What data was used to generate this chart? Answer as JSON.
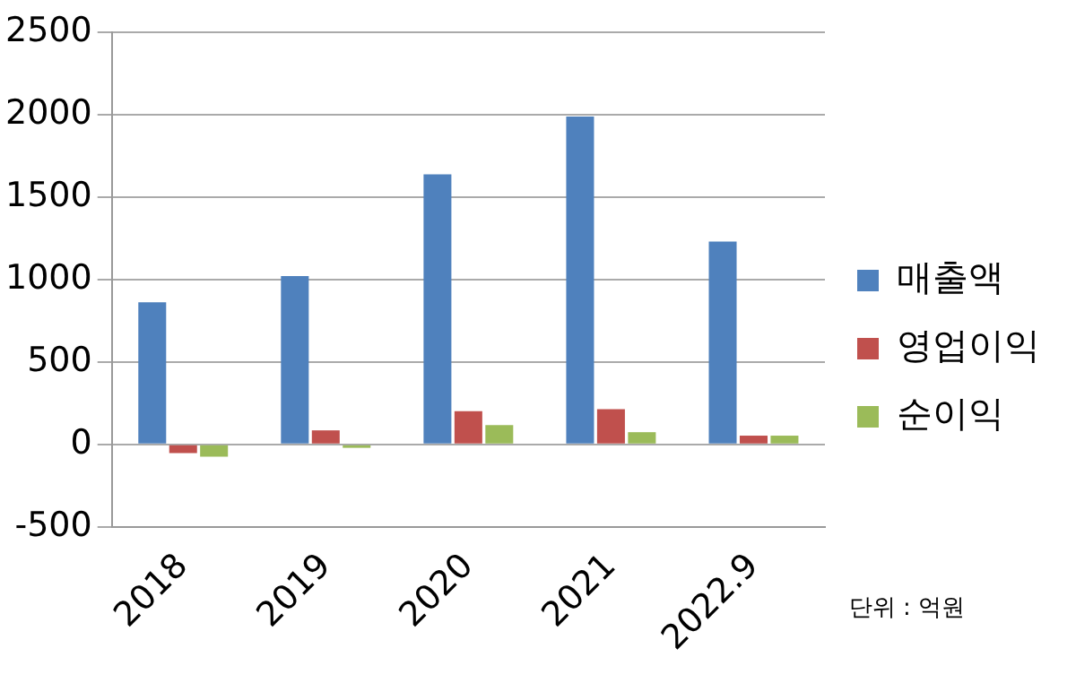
{
  "chart_data": {
    "type": "bar",
    "categories": [
      "2018",
      "2019",
      "2020",
      "2021",
      "2022.9"
    ],
    "series": [
      {
        "name": "매출액",
        "color": "#4f81bd",
        "values": [
          862,
          1021,
          1638,
          1989,
          1230
        ]
      },
      {
        "name": "영업이익",
        "color": "#c0504d",
        "values": [
          -53,
          85,
          202,
          213,
          53
        ]
      },
      {
        "name": "순이익",
        "color": "#9bbb59",
        "values": [
          -74,
          -21,
          117,
          74,
          53
        ]
      }
    ],
    "ylim": [
      -500,
      2500
    ],
    "yticks": [
      -500,
      0,
      500,
      1000,
      1500,
      2000,
      2500
    ],
    "grid": "y",
    "legend": "right",
    "annotations": [
      "단위 : 억원"
    ]
  }
}
